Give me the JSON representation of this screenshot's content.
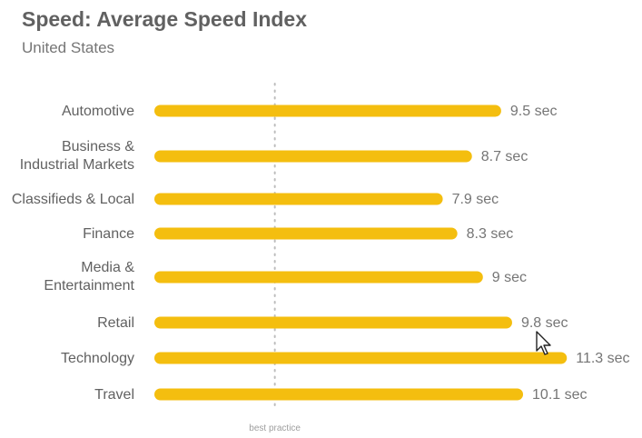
{
  "header": {
    "title": "Speed: Average Speed Index",
    "subtitle": "United States"
  },
  "chart_data": {
    "type": "bar",
    "orientation": "horizontal",
    "title": "Speed: Average Speed Index",
    "subtitle": "United States",
    "unit": "sec",
    "categories": [
      [
        "Automotive"
      ],
      [
        "Business &",
        "Industrial Markets"
      ],
      [
        "Classifieds & Local"
      ],
      [
        "Finance"
      ],
      [
        "Media &",
        "Entertainment"
      ],
      [
        "Retail"
      ],
      [
        "Technology"
      ],
      [
        "Travel"
      ]
    ],
    "values": [
      9.5,
      8.7,
      7.9,
      8.3,
      9,
      9.8,
      11.3,
      10.1
    ],
    "value_labels": [
      "9.5 sec",
      "8.7 sec",
      "7.9 sec",
      "8.3 sec",
      "9 sec",
      "9.8 sec",
      "11.3 sec",
      "10.1 sec"
    ],
    "reference_line": {
      "label": "best practice",
      "value": 3.3
    },
    "bar_color": "#F4BE0F",
    "grid": false,
    "legend": "none"
  },
  "colors": {
    "bar": "#F4BE0F",
    "title": "#616161",
    "text": "#757575",
    "reference": "#bdbdbd"
  },
  "icons": {
    "cursor": "mouse-pointer-icon"
  }
}
